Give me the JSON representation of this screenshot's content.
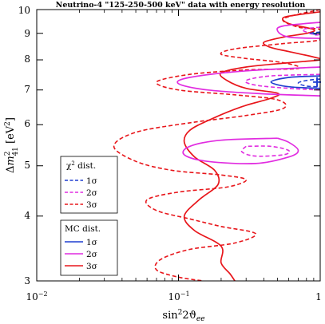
{
  "chart_data": {
    "type": "line",
    "title": "Neutrino-4 \"125-250-500 keV\" data with energy resolution",
    "xlabel": "sin²2ϑ_ee",
    "ylabel": "Δm²41 [eV²]",
    "xscale": "log",
    "yscale": "log",
    "xlim": [
      0.01,
      1
    ],
    "ylim": [
      3,
      10
    ],
    "x_ticks": [
      "10⁻²",
      "10⁻¹",
      "1"
    ],
    "y_ticks": [
      "3",
      "4",
      "5",
      "6",
      "7",
      "8",
      "9",
      "10"
    ],
    "grid": false,
    "colors": {
      "s1": "#1f3fd0",
      "s2": "#e12ce0",
      "s3": "#e8161b"
    },
    "legends": [
      {
        "title": "χ² dist.",
        "placement": "middle-left",
        "entries": [
          {
            "label": "1σ",
            "color": "#1f3fd0",
            "dash": "dashed"
          },
          {
            "label": "2σ",
            "color": "#e12ce0",
            "dash": "dashed"
          },
          {
            "label": "3σ",
            "color": "#e8161b",
            "dash": "dashed"
          }
        ]
      },
      {
        "title": "MC dist.",
        "placement": "lower-left",
        "entries": [
          {
            "label": "1σ",
            "color": "#1f3fd0",
            "dash": "solid"
          },
          {
            "label": "2σ",
            "color": "#e12ce0",
            "dash": "solid"
          },
          {
            "label": "3σ",
            "color": "#e8161b",
            "dash": "solid"
          }
        ]
      }
    ],
    "best_fit": {
      "x": 0.95,
      "y": 7.25
    },
    "series": [
      {
        "name": "χ² dist. 3σ",
        "color": "#e8161b",
        "dash": "dashed",
        "points": [
          [
            1.0,
            10.0
          ],
          [
            0.55,
            9.6
          ],
          [
            0.7,
            9.25
          ],
          [
            1.0,
            9.15
          ],
          [
            1.0,
            8.75
          ],
          [
            0.55,
            8.6
          ],
          [
            0.25,
            8.4
          ],
          [
            0.2,
            8.2
          ],
          [
            0.3,
            8.05
          ],
          [
            0.55,
            7.9
          ],
          [
            0.7,
            7.7
          ],
          [
            0.3,
            7.65
          ],
          [
            0.12,
            7.5
          ],
          [
            0.07,
            7.25
          ],
          [
            0.1,
            7.0
          ],
          [
            0.25,
            6.85
          ],
          [
            0.5,
            6.7
          ],
          [
            0.55,
            6.45
          ],
          [
            0.3,
            6.25
          ],
          [
            0.12,
            6.05
          ],
          [
            0.05,
            5.8
          ],
          [
            0.035,
            5.45
          ],
          [
            0.05,
            5.1
          ],
          [
            0.09,
            4.9
          ],
          [
            0.2,
            4.8
          ],
          [
            0.3,
            4.7
          ],
          [
            0.22,
            4.55
          ],
          [
            0.1,
            4.45
          ],
          [
            0.06,
            4.3
          ],
          [
            0.07,
            4.1
          ],
          [
            0.12,
            3.95
          ],
          [
            0.2,
            3.82
          ],
          [
            0.35,
            3.7
          ],
          [
            0.25,
            3.55
          ],
          [
            0.12,
            3.45
          ],
          [
            0.075,
            3.3
          ],
          [
            0.07,
            3.15
          ],
          [
            0.1,
            3.05
          ],
          [
            0.15,
            3.0
          ]
        ]
      },
      {
        "name": "MC dist. 3σ",
        "color": "#e8161b",
        "dash": "solid",
        "points": [
          [
            1.0,
            9.9
          ],
          [
            0.75,
            9.8
          ],
          [
            0.55,
            9.65
          ],
          [
            0.6,
            9.4
          ],
          [
            0.9,
            9.15
          ],
          [
            0.8,
            9.0
          ],
          [
            0.55,
            8.85
          ],
          [
            0.4,
            8.65
          ],
          [
            0.45,
            8.45
          ],
          [
            0.6,
            8.3
          ],
          [
            0.9,
            8.1
          ],
          [
            1.0,
            8.0
          ],
          [
            0.6,
            7.9
          ],
          [
            0.3,
            7.75
          ],
          [
            0.2,
            7.55
          ],
          [
            0.22,
            7.3
          ],
          [
            0.3,
            7.05
          ],
          [
            0.5,
            6.9
          ],
          [
            0.45,
            6.75
          ],
          [
            0.28,
            6.5
          ],
          [
            0.17,
            6.15
          ],
          [
            0.12,
            5.85
          ],
          [
            0.11,
            5.55
          ],
          [
            0.13,
            5.2
          ],
          [
            0.18,
            4.9
          ],
          [
            0.19,
            4.6
          ],
          [
            0.14,
            4.3
          ],
          [
            0.11,
            4.0
          ],
          [
            0.13,
            3.75
          ],
          [
            0.2,
            3.5
          ],
          [
            0.2,
            3.25
          ],
          [
            0.23,
            3.1
          ],
          [
            0.25,
            3.0
          ]
        ]
      },
      {
        "name": "χ² dist. 2σ",
        "color": "#e12ce0",
        "dash": "dashed",
        "points": [
          [
            1.0,
            9.25
          ],
          [
            0.75,
            9.15
          ],
          [
            0.9,
            8.95
          ],
          [
            1.0,
            8.95
          ]
        ]
      },
      {
        "name": "χ² dist. 2σ (lower)",
        "color": "#e12ce0",
        "dash": "dashed",
        "points": [
          [
            1.0,
            7.5
          ],
          [
            0.45,
            7.45
          ],
          [
            0.3,
            7.3
          ],
          [
            0.35,
            7.15
          ],
          [
            0.6,
            7.05
          ],
          [
            1.0,
            7.0
          ]
        ]
      },
      {
        "name": "MC dist. 2σ (upper)",
        "color": "#e12ce0",
        "dash": "solid",
        "points": [
          [
            1.0,
            9.45
          ],
          [
            0.55,
            9.3
          ],
          [
            0.5,
            9.1
          ],
          [
            0.6,
            8.85
          ],
          [
            1.0,
            8.8
          ]
        ]
      },
      {
        "name": "MC dist. 2σ (middle)",
        "color": "#e12ce0",
        "dash": "solid",
        "points": [
          [
            1.0,
            7.75
          ],
          [
            0.3,
            7.62
          ],
          [
            0.12,
            7.4
          ],
          [
            0.1,
            7.2
          ],
          [
            0.16,
            7.0
          ],
          [
            0.4,
            6.88
          ],
          [
            1.0,
            6.82
          ]
        ]
      },
      {
        "name": "MC dist. 2σ (lower)",
        "color": "#e12ce0",
        "dash": "solid",
        "points": [
          [
            0.5,
            5.65
          ],
          [
            0.2,
            5.6
          ],
          [
            0.12,
            5.45
          ],
          [
            0.11,
            5.25
          ],
          [
            0.16,
            5.1
          ],
          [
            0.35,
            5.05
          ],
          [
            0.6,
            5.2
          ],
          [
            0.7,
            5.35
          ],
          [
            0.6,
            5.55
          ],
          [
            0.5,
            5.65
          ]
        ]
      },
      {
        "name": "χ² dist. 2σ (lower island)",
        "color": "#e12ce0",
        "dash": "dashed",
        "points": [
          [
            0.3,
            5.45
          ],
          [
            0.28,
            5.32
          ],
          [
            0.35,
            5.22
          ],
          [
            0.55,
            5.25
          ],
          [
            0.6,
            5.35
          ],
          [
            0.45,
            5.45
          ],
          [
            0.3,
            5.45
          ]
        ]
      },
      {
        "name": "χ² dist. 1σ",
        "color": "#1f3fd0",
        "dash": "dashed",
        "points": [
          [
            1.0,
            9.05
          ],
          [
            0.85,
            9.0
          ],
          [
            1.0,
            8.95
          ]
        ]
      },
      {
        "name": "χ² dist. 1σ (lower)",
        "color": "#1f3fd0",
        "dash": "dashed",
        "points": [
          [
            1.0,
            7.35
          ],
          [
            0.8,
            7.3
          ],
          [
            0.7,
            7.22
          ],
          [
            0.8,
            7.12
          ],
          [
            1.0,
            7.1
          ]
        ]
      },
      {
        "name": "MC dist. 1σ",
        "color": "#1f3fd0",
        "dash": "solid",
        "points": [
          [
            1.0,
            7.45
          ],
          [
            0.6,
            7.4
          ],
          [
            0.45,
            7.25
          ],
          [
            0.6,
            7.1
          ],
          [
            1.0,
            7.05
          ]
        ]
      }
    ]
  }
}
